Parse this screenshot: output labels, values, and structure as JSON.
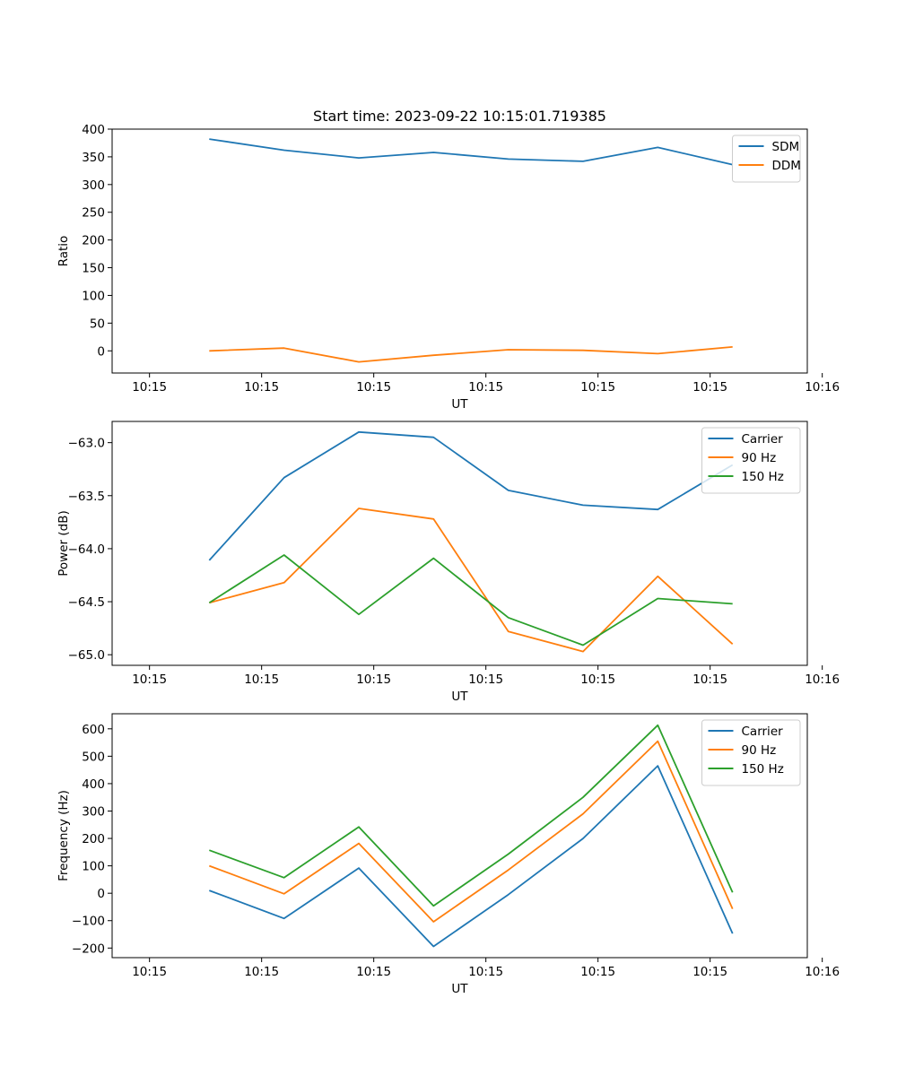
{
  "chart_data": [
    {
      "type": "line",
      "title": "Start time: 2023-09-22 10:15:01.719385",
      "xlabel": "UT",
      "ylabel": "Ratio",
      "ylim": [
        -40,
        400
      ],
      "yticks": [
        0,
        50,
        100,
        150,
        200,
        250,
        300,
        350,
        400
      ],
      "xlim": [
        -0.5,
        8.8
      ],
      "xticks": [
        0,
        1.5,
        3,
        4.5,
        6,
        7.5,
        9
      ],
      "xtick_labels": [
        "10:15",
        "10:15",
        "10:15",
        "10:15",
        "10:15",
        "10:15",
        "10:16"
      ],
      "x": [
        0.8,
        1.8,
        2.8,
        3.8,
        4.8,
        5.8,
        6.8,
        7.8
      ],
      "legend_position": "top-right",
      "series": [
        {
          "name": "SDM",
          "color": "#1f77b4",
          "values": [
            382,
            362,
            348,
            358,
            346,
            342,
            367,
            336
          ]
        },
        {
          "name": "DDM",
          "color": "#ff7f0e",
          "values": [
            0,
            5,
            -20,
            -8,
            2,
            1,
            -5,
            7
          ]
        }
      ]
    },
    {
      "type": "line",
      "title": "",
      "xlabel": "UT",
      "ylabel": "Power (dB)",
      "ylim": [
        -65.1,
        -62.8
      ],
      "yticks": [
        -65.0,
        -64.5,
        -64.0,
        -63.5,
        -63.0
      ],
      "ytick_labels": [
        "−65.0",
        "−64.5",
        "−64.0",
        "−63.5",
        "−63.0"
      ],
      "xlim": [
        -0.5,
        8.8
      ],
      "xticks": [
        0,
        1.5,
        3,
        4.5,
        6,
        7.5,
        9
      ],
      "xtick_labels": [
        "10:15",
        "10:15",
        "10:15",
        "10:15",
        "10:15",
        "10:15",
        "10:16"
      ],
      "x": [
        0.8,
        1.8,
        2.8,
        3.8,
        4.8,
        5.8,
        6.8,
        7.8
      ],
      "legend_position": "top-right",
      "series": [
        {
          "name": "Carrier",
          "color": "#1f77b4",
          "values": [
            -64.11,
            -63.33,
            -62.9,
            -62.95,
            -63.45,
            -63.59,
            -63.63,
            -63.21
          ]
        },
        {
          "name": "90 Hz",
          "color": "#ff7f0e",
          "values": [
            -64.51,
            -64.32,
            -63.62,
            -63.72,
            -64.78,
            -64.97,
            -64.26,
            -64.9
          ]
        },
        {
          "name": "150 Hz",
          "color": "#2ca02c",
          "values": [
            -64.51,
            -64.06,
            -64.62,
            -64.09,
            -64.65,
            -64.91,
            -64.47,
            -64.52
          ]
        }
      ]
    },
    {
      "type": "line",
      "title": "",
      "xlabel": "UT",
      "ylabel": "Frequency (Hz)",
      "ylim": [
        -235,
        655
      ],
      "yticks": [
        -200,
        -100,
        0,
        100,
        200,
        300,
        400,
        500,
        600
      ],
      "ytick_labels": [
        "−200",
        "−100",
        "0",
        "100",
        "200",
        "300",
        "400",
        "500",
        "600"
      ],
      "xlim": [
        -0.5,
        8.8
      ],
      "xticks": [
        0,
        1.5,
        3,
        4.5,
        6,
        7.5,
        9
      ],
      "xtick_labels": [
        "10:15",
        "10:15",
        "10:15",
        "10:15",
        "10:15",
        "10:15",
        "10:16"
      ],
      "x": [
        0.8,
        1.8,
        2.8,
        3.8,
        4.8,
        5.8,
        6.8,
        7.8
      ],
      "legend_position": "top-right",
      "series": [
        {
          "name": "Carrier",
          "color": "#1f77b4",
          "values": [
            10,
            -92,
            92,
            -194,
            -5,
            200,
            465,
            -147
          ]
        },
        {
          "name": "90 Hz",
          "color": "#ff7f0e",
          "values": [
            100,
            -2,
            182,
            -104,
            85,
            290,
            555,
            -57
          ]
        },
        {
          "name": "150 Hz",
          "color": "#2ca02c",
          "values": [
            157,
            57,
            242,
            -46,
            143,
            350,
            613,
            3
          ]
        }
      ]
    }
  ]
}
